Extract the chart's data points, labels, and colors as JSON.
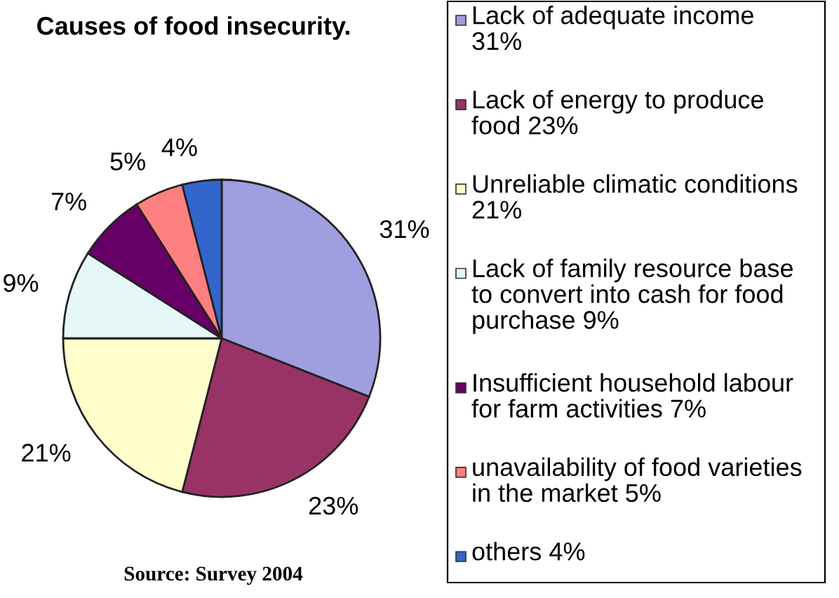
{
  "chart_data": {
    "type": "pie",
    "title": "Causes of food insecurity.",
    "categories": [
      "Lack of adequate income 31%",
      "Lack of energy to produce food 23%",
      "Unreliable climatic conditions 21%",
      "Lack of family resource base to convert into cash for food purchase 9%",
      "Insufficient household labour for farm activities 7%",
      "unavailability of food varieties in the market 5%",
      "others 4%"
    ],
    "values": [
      31,
      23,
      21,
      9,
      7,
      5,
      4
    ],
    "value_labels": [
      "31%",
      "23%",
      "21%",
      "9%",
      "7%",
      "5%",
      "4%"
    ],
    "colors": [
      "#9f9fe0",
      "#993366",
      "#ffffcc",
      "#e6f7f7",
      "#660066",
      "#ff8080",
      "#3366cc"
    ],
    "legend": "right",
    "annotations": [
      "Source: Survey 2004"
    ]
  }
}
